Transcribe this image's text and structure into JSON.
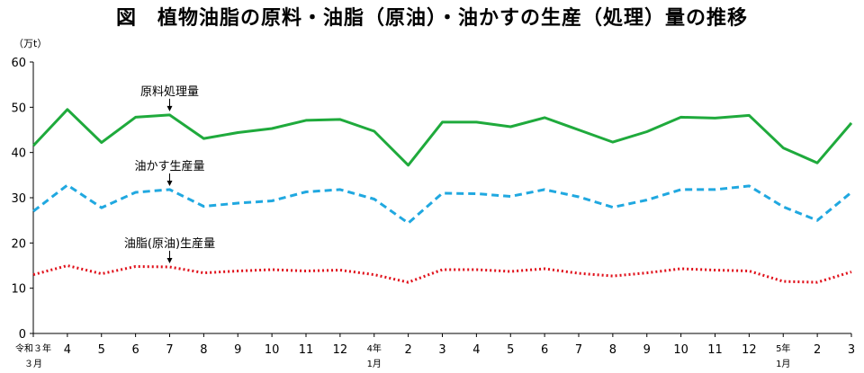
{
  "title": "図　植物油脂の原料・油脂（原油）・油かすの生産（処理）量の推移",
  "chart_data": {
    "type": "line",
    "title": "図　植物油脂の原料・油脂（原油）・油かすの生産（処理）量の推移",
    "ylabel": "（万t）",
    "xlabel": "",
    "ylim": [
      0,
      60
    ],
    "yticks": [
      "0",
      "10",
      "20",
      "30",
      "40",
      "50",
      "60"
    ],
    "grid": false,
    "categories": [
      {
        "main": "令和３年",
        "sub": "３月"
      },
      {
        "main": "4",
        "sub": ""
      },
      {
        "main": "5",
        "sub": ""
      },
      {
        "main": "6",
        "sub": ""
      },
      {
        "main": "7",
        "sub": ""
      },
      {
        "main": "8",
        "sub": ""
      },
      {
        "main": "9",
        "sub": ""
      },
      {
        "main": "10",
        "sub": ""
      },
      {
        "main": "11",
        "sub": ""
      },
      {
        "main": "12",
        "sub": ""
      },
      {
        "main": "4年",
        "sub": "1月"
      },
      {
        "main": "2",
        "sub": ""
      },
      {
        "main": "3",
        "sub": ""
      },
      {
        "main": "4",
        "sub": ""
      },
      {
        "main": "5",
        "sub": ""
      },
      {
        "main": "6",
        "sub": ""
      },
      {
        "main": "7",
        "sub": ""
      },
      {
        "main": "8",
        "sub": ""
      },
      {
        "main": "9",
        "sub": ""
      },
      {
        "main": "10",
        "sub": ""
      },
      {
        "main": "11",
        "sub": ""
      },
      {
        "main": "12",
        "sub": ""
      },
      {
        "main": "5年",
        "sub": "1月"
      },
      {
        "main": "2",
        "sub": ""
      },
      {
        "main": "3",
        "sub": ""
      }
    ],
    "series": [
      {
        "name": "原料処理量",
        "color": "#1faa3c",
        "style": "solid",
        "label_index": 4,
        "values": [
          41.5,
          49.5,
          42.2,
          47.8,
          48.3,
          43.1,
          44.4,
          45.3,
          47.1,
          47.3,
          44.7,
          37.2,
          46.7,
          46.7,
          45.7,
          47.7,
          45.0,
          42.3,
          44.6,
          47.8,
          47.6,
          48.2,
          41.0,
          37.7,
          46.5
        ]
      },
      {
        "name": "油かす生産量",
        "color": "#20a8e0",
        "style": "dashed",
        "label_index": 4,
        "values": [
          27.0,
          32.8,
          27.8,
          31.2,
          31.8,
          28.1,
          28.8,
          29.3,
          31.3,
          31.8,
          29.7,
          24.4,
          31.0,
          30.9,
          30.3,
          31.8,
          30.2,
          27.9,
          29.5,
          31.8,
          31.8,
          32.6,
          28.0,
          25.0,
          31.2
        ]
      },
      {
        "name": "油脂(原油)生産量",
        "color": "#e0101a",
        "style": "dotted",
        "label_index": 4,
        "values": [
          13.0,
          15.0,
          13.2,
          14.8,
          14.7,
          13.4,
          13.8,
          14.1,
          13.8,
          14.0,
          13.0,
          11.3,
          14.1,
          14.1,
          13.7,
          14.3,
          13.3,
          12.7,
          13.4,
          14.3,
          14.0,
          13.8,
          11.5,
          11.3,
          13.6
        ]
      }
    ]
  }
}
